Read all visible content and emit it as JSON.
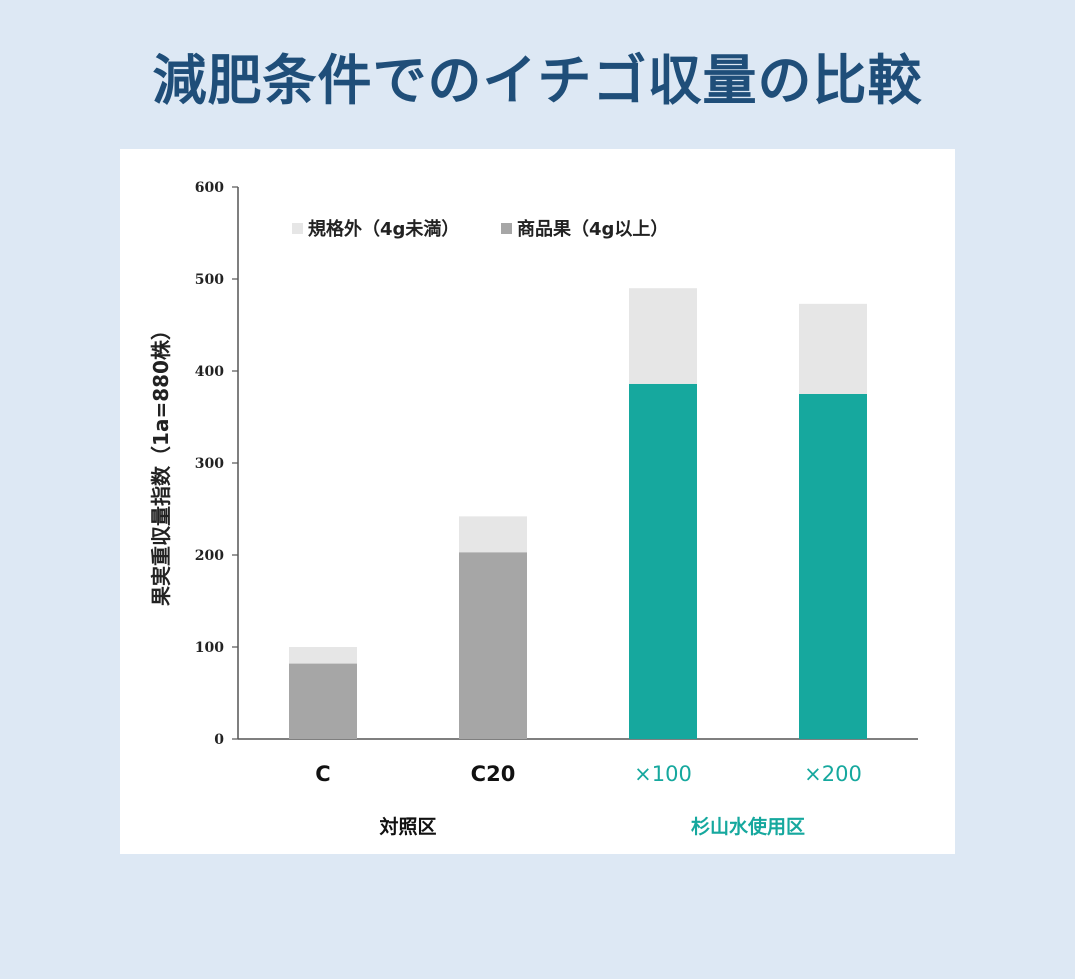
{
  "title": "減肥条件でのイチゴ収量の比較",
  "colors": {
    "background": "#dde8f4",
    "title": "#1f4e79",
    "panel": "#ffffff",
    "offgrade": "#e6e6e6",
    "marketable_control": "#a6a6a6",
    "marketable_treatment": "#16a89e",
    "treatment_text": "#16a89e",
    "control_text": "#111111",
    "axis": "#555555"
  },
  "chart_data": {
    "type": "bar",
    "stacked": true,
    "ylabel": "果実重収量指数（1a=880株）",
    "ylim": [
      0,
      600
    ],
    "yticks": [
      0,
      100,
      200,
      300,
      400,
      500,
      600
    ],
    "categories": [
      "C",
      "C20",
      "×100",
      "×200"
    ],
    "category_group": [
      "control",
      "control",
      "treatment",
      "treatment"
    ],
    "series": [
      {
        "name": "商品果（4g以上）",
        "values": [
          82,
          203,
          386,
          375
        ]
      },
      {
        "name": "規格外（4g未満）",
        "values": [
          18,
          39,
          104,
          98
        ]
      }
    ],
    "legend": {
      "placement": "top-left",
      "order": [
        1,
        0
      ]
    },
    "groups": [
      {
        "label": "対照区",
        "categories": [
          "C",
          "C20"
        ]
      },
      {
        "label": "杉山水使用区",
        "categories": [
          "×100",
          "×200"
        ]
      }
    ],
    "grid": false
  }
}
